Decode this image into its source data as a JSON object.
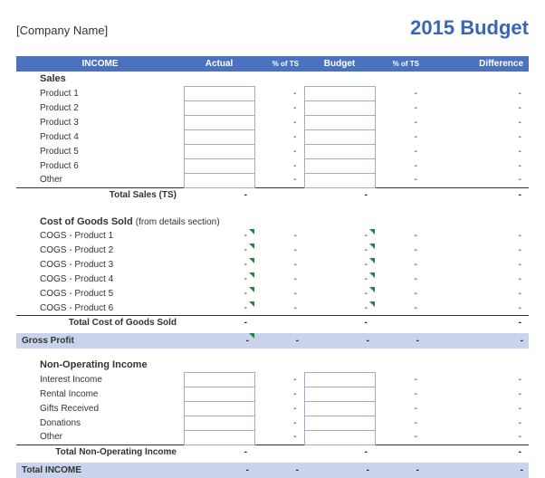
{
  "header": {
    "company_name": "[Company Name]",
    "title": "2015 Budget",
    "title_color": "#3a66b5"
  },
  "colors": {
    "header_bg": "#4a72bf",
    "summary_bg": "#c9d4ec",
    "border": "#9faec4"
  },
  "columns": {
    "section": "INCOME",
    "actual": "Actual",
    "pct_ts1": "% of TS",
    "budget": "Budget",
    "pct_ts2": "% of TS",
    "difference": "Difference"
  },
  "dash": "-",
  "sales": {
    "title": "Sales",
    "items": [
      "Product 1",
      "Product 2",
      "Product 3",
      "Product 4",
      "Product 5",
      "Product 6",
      "Other"
    ],
    "subtotal": "Total Sales (TS)"
  },
  "cogs": {
    "title": "Cost of Goods Sold",
    "note": "(from details section)",
    "items": [
      "COGS - Product 1",
      "COGS - Product 2",
      "COGS - Product 3",
      "COGS - Product 4",
      "COGS - Product 5",
      "COGS - Product 6"
    ],
    "subtotal": "Total Cost of Goods Sold"
  },
  "gross_profit": "Gross Profit",
  "nonop": {
    "title": "Non-Operating Income",
    "items": [
      "Interest Income",
      "Rental Income",
      "Gifts Received",
      "Donations",
      "Other"
    ],
    "subtotal": "Total Non-Operating Income"
  },
  "total_income": "Total INCOME"
}
